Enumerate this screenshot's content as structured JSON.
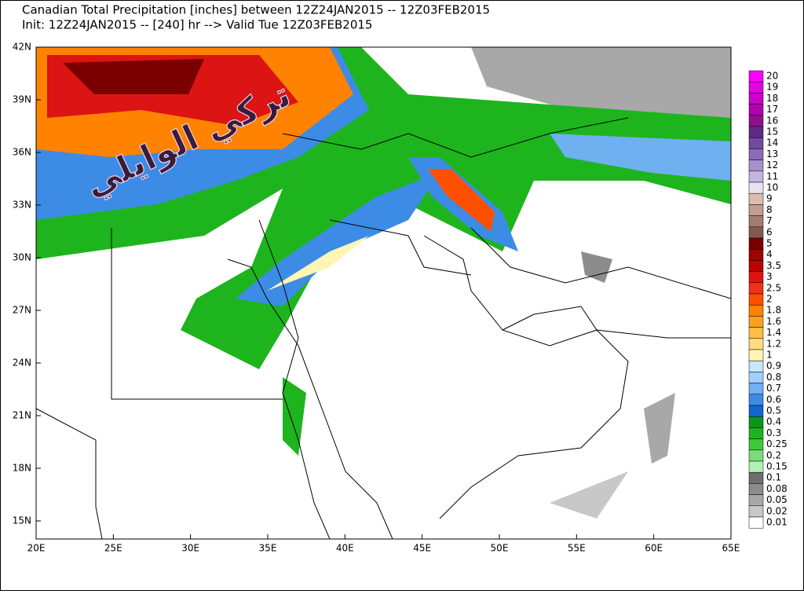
{
  "header": {
    "title_line1": "Canadian Total Precipitation [inches] between 12Z24JAN2015 -- 12Z03FEB2015",
    "title_line2": "Init: 12Z24JAN2015 -- [240] hr --> Valid Tue 12Z03FEB2015"
  },
  "map": {
    "watermark": "تركي الوايلي",
    "lat_labels": [
      "42N",
      "39N",
      "36N",
      "33N",
      "30N",
      "27N",
      "24N",
      "21N",
      "18N",
      "15N"
    ],
    "lon_labels": [
      "20E",
      "25E",
      "30E",
      "35E",
      "40E",
      "45E",
      "50E",
      "55E",
      "60E",
      "65E"
    ]
  },
  "legend": {
    "levels": [
      {
        "label": "20",
        "color": "#ff00ff"
      },
      {
        "label": "19",
        "color": "#e600e6"
      },
      {
        "label": "18",
        "color": "#cc00cc"
      },
      {
        "label": "17",
        "color": "#b000b0"
      },
      {
        "label": "16",
        "color": "#90108c"
      },
      {
        "label": "15",
        "color": "#5e2a86"
      },
      {
        "label": "14",
        "color": "#6e4aa0"
      },
      {
        "label": "13",
        "color": "#8a6cb8"
      },
      {
        "label": "12",
        "color": "#a690cc"
      },
      {
        "label": "11",
        "color": "#c4b4e0"
      },
      {
        "label": "10",
        "color": "#eae2ef"
      },
      {
        "label": "9",
        "color": "#dcbcb0"
      },
      {
        "label": "8",
        "color": "#c49c90"
      },
      {
        "label": "7",
        "color": "#a47c70"
      },
      {
        "label": "6",
        "color": "#845a50"
      },
      {
        "label": "5",
        "color": "#7a0000"
      },
      {
        "label": "4",
        "color": "#a00000"
      },
      {
        "label": "3.5",
        "color": "#be0000"
      },
      {
        "label": "3",
        "color": "#dc1414"
      },
      {
        "label": "2.5",
        "color": "#f03214"
      },
      {
        "label": "2",
        "color": "#ff5000"
      },
      {
        "label": "1.8",
        "color": "#ff8200"
      },
      {
        "label": "1.6",
        "color": "#ffa01e"
      },
      {
        "label": "1.4",
        "color": "#ffbe46"
      },
      {
        "label": "1.2",
        "color": "#ffdc82"
      },
      {
        "label": "1",
        "color": "#fff5b4"
      },
      {
        "label": "0.9",
        "color": "#c8e6ff"
      },
      {
        "label": "0.8",
        "color": "#a0d0ff"
      },
      {
        "label": "0.7",
        "color": "#6eb0f0"
      },
      {
        "label": "0.6",
        "color": "#3c8ce6"
      },
      {
        "label": "0.5",
        "color": "#1464d2"
      },
      {
        "label": "0.4",
        "color": "#0a961e"
      },
      {
        "label": "0.3",
        "color": "#1eb41e"
      },
      {
        "label": "0.25",
        "color": "#3cc83c"
      },
      {
        "label": "0.2",
        "color": "#78dc78"
      },
      {
        "label": "0.15",
        "color": "#b4f0b4"
      },
      {
        "label": "0.1",
        "color": "#6e6e6e"
      },
      {
        "label": "0.08",
        "color": "#8c8c8c"
      },
      {
        "label": "0.05",
        "color": "#a8a8a8"
      },
      {
        "label": "0.02",
        "color": "#c8c8c8"
      },
      {
        "label": "0.01",
        "color": "#ffffff"
      }
    ]
  }
}
